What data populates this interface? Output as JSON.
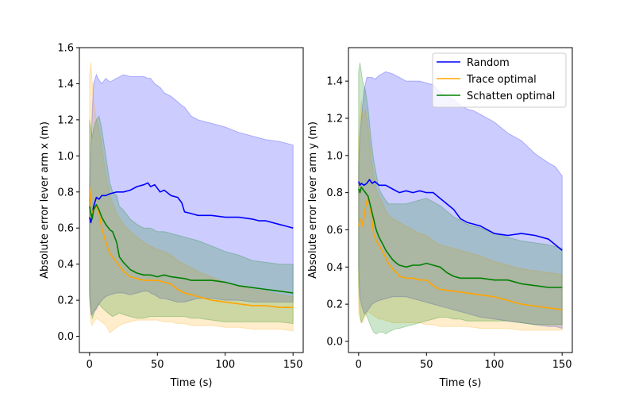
{
  "figure": {
    "background": "#ffffff"
  },
  "chart_data": [
    {
      "type": "line",
      "title": "",
      "xlabel": "Time (s)",
      "ylabel": "Absolute error lever arm x (m)",
      "xlim": [
        -7.5,
        157.5
      ],
      "ylim": [
        -0.09,
        1.6
      ],
      "xticks": [
        0,
        50,
        100,
        150
      ],
      "yticks": [
        0.0,
        0.2,
        0.4,
        0.6,
        0.8,
        1.0,
        1.2,
        1.4,
        1.6
      ],
      "ytick_labels": [
        "0.0",
        "0.2",
        "0.4",
        "0.6",
        "0.8",
        "1.0",
        "1.2",
        "1.4",
        "1.6"
      ],
      "legend": null,
      "series": [
        {
          "name": "Random",
          "color": "#0000ff",
          "x": [
            0,
            1,
            2,
            3,
            5,
            7,
            9,
            12,
            15,
            20,
            25,
            30,
            35,
            40,
            43,
            45,
            48,
            50,
            52,
            55,
            60,
            65,
            68,
            70,
            75,
            80,
            90,
            100,
            110,
            120,
            125,
            130,
            140,
            145,
            150
          ],
          "y": [
            0.66,
            0.63,
            0.67,
            0.72,
            0.77,
            0.76,
            0.78,
            0.78,
            0.79,
            0.8,
            0.8,
            0.81,
            0.83,
            0.84,
            0.85,
            0.83,
            0.84,
            0.82,
            0.8,
            0.81,
            0.78,
            0.77,
            0.74,
            0.69,
            0.68,
            0.67,
            0.67,
            0.66,
            0.66,
            0.65,
            0.64,
            0.64,
            0.62,
            0.61,
            0.6
          ],
          "band_upper": [
            0.82,
            1.05,
            1.25,
            1.4,
            1.45,
            1.42,
            1.4,
            1.43,
            1.41,
            1.43,
            1.45,
            1.44,
            1.44,
            1.44,
            1.43,
            1.43,
            1.4,
            1.39,
            1.38,
            1.35,
            1.33,
            1.3,
            1.28,
            1.27,
            1.22,
            1.2,
            1.18,
            1.16,
            1.13,
            1.11,
            1.1,
            1.09,
            1.08,
            1.07,
            1.06
          ],
          "band_lower": [
            0.22,
            0.12,
            0.12,
            0.14,
            0.15,
            0.18,
            0.2,
            0.22,
            0.23,
            0.24,
            0.24,
            0.23,
            0.24,
            0.25,
            0.25,
            0.24,
            0.23,
            0.22,
            0.21,
            0.21,
            0.2,
            0.19,
            0.19,
            0.19,
            0.2,
            0.21,
            0.21,
            0.2,
            0.2,
            0.19,
            0.19,
            0.19,
            0.19,
            0.19,
            0.19
          ]
        },
        {
          "name": "Trace optimal",
          "color": "#ffa500",
          "x": [
            0,
            1,
            2,
            3,
            5,
            7,
            9,
            12,
            15,
            20,
            25,
            30,
            35,
            40,
            45,
            50,
            55,
            60,
            65,
            70,
            75,
            80,
            90,
            100,
            110,
            120,
            130,
            140,
            150
          ],
          "y": [
            0.83,
            0.74,
            0.68,
            0.7,
            0.72,
            0.68,
            0.6,
            0.52,
            0.46,
            0.41,
            0.36,
            0.33,
            0.32,
            0.31,
            0.31,
            0.31,
            0.3,
            0.29,
            0.26,
            0.24,
            0.23,
            0.22,
            0.2,
            0.19,
            0.18,
            0.17,
            0.17,
            0.16,
            0.16
          ],
          "band_upper": [
            1.45,
            1.52,
            1.4,
            1.3,
            1.2,
            1.15,
            1.05,
            0.9,
            0.78,
            0.68,
            0.62,
            0.58,
            0.55,
            0.52,
            0.5,
            0.48,
            0.47,
            0.45,
            0.42,
            0.4,
            0.38,
            0.36,
            0.33,
            0.3,
            0.28,
            0.26,
            0.25,
            0.23,
            0.22
          ],
          "band_lower": [
            0.2,
            0.08,
            0.06,
            0.08,
            0.1,
            0.09,
            0.08,
            0.06,
            0.02,
            0.05,
            0.07,
            0.08,
            0.09,
            0.09,
            0.09,
            0.09,
            0.08,
            0.08,
            0.07,
            0.07,
            0.06,
            0.06,
            0.06,
            0.05,
            0.05,
            0.04,
            0.04,
            0.04,
            0.03
          ]
        },
        {
          "name": "Schatten optimal",
          "color": "#008000",
          "x": [
            0,
            1,
            2,
            3,
            5,
            7,
            9,
            12,
            15,
            17,
            20,
            22,
            25,
            30,
            35,
            40,
            45,
            50,
            55,
            60,
            70,
            75,
            80,
            90,
            100,
            110,
            120,
            130,
            140,
            150
          ],
          "y": [
            0.72,
            0.68,
            0.65,
            0.7,
            0.73,
            0.7,
            0.66,
            0.62,
            0.59,
            0.58,
            0.52,
            0.44,
            0.41,
            0.37,
            0.35,
            0.34,
            0.34,
            0.33,
            0.34,
            0.33,
            0.32,
            0.31,
            0.31,
            0.31,
            0.3,
            0.28,
            0.27,
            0.26,
            0.25,
            0.24
          ],
          "band_upper": [
            1.2,
            1.15,
            1.1,
            1.15,
            1.2,
            1.22,
            1.15,
            1.0,
            0.85,
            0.8,
            0.78,
            0.72,
            0.7,
            0.65,
            0.62,
            0.6,
            0.6,
            0.58,
            0.58,
            0.57,
            0.55,
            0.54,
            0.53,
            0.5,
            0.47,
            0.45,
            0.42,
            0.41,
            0.4,
            0.4
          ],
          "band_lower": [
            0.25,
            0.15,
            0.1,
            0.12,
            0.16,
            0.18,
            0.16,
            0.14,
            0.12,
            0.11,
            0.12,
            0.13,
            0.12,
            0.11,
            0.1,
            0.1,
            0.11,
            0.11,
            0.11,
            0.11,
            0.11,
            0.1,
            0.1,
            0.09,
            0.08,
            0.08,
            0.08,
            0.08,
            0.08,
            0.07
          ]
        }
      ]
    },
    {
      "type": "line",
      "title": "",
      "xlabel": "Time (s)",
      "ylabel": "Absolute error lever arm y (m)",
      "xlim": [
        -7.5,
        157.5
      ],
      "ylim": [
        -0.06,
        1.58
      ],
      "xticks": [
        0,
        50,
        100,
        150
      ],
      "yticks": [
        0.0,
        0.2,
        0.4,
        0.6,
        0.8,
        1.0,
        1.2,
        1.4
      ],
      "ytick_labels": [
        "0.0",
        "0.2",
        "0.4",
        "0.6",
        "0.8",
        "1.0",
        "1.2",
        "1.4"
      ],
      "legend": "top-right",
      "series": [
        {
          "name": "Random",
          "color": "#0000ff",
          "x": [
            0,
            1,
            2,
            4,
            6,
            8,
            10,
            12,
            15,
            20,
            25,
            30,
            35,
            40,
            45,
            50,
            55,
            60,
            65,
            70,
            75,
            80,
            85,
            90,
            100,
            110,
            120,
            130,
            140,
            145,
            150
          ],
          "y": [
            0.86,
            0.84,
            0.85,
            0.84,
            0.85,
            0.87,
            0.85,
            0.86,
            0.84,
            0.84,
            0.82,
            0.8,
            0.81,
            0.8,
            0.81,
            0.8,
            0.8,
            0.77,
            0.74,
            0.71,
            0.66,
            0.64,
            0.63,
            0.62,
            0.58,
            0.57,
            0.58,
            0.57,
            0.55,
            0.52,
            0.49
          ],
          "band_upper": [
            0.95,
            1.1,
            1.2,
            1.35,
            1.42,
            1.42,
            1.42,
            1.41,
            1.43,
            1.45,
            1.44,
            1.42,
            1.4,
            1.4,
            1.4,
            1.39,
            1.38,
            1.34,
            1.32,
            1.3,
            1.27,
            1.25,
            1.24,
            1.22,
            1.18,
            1.12,
            1.08,
            1.01,
            0.96,
            0.94,
            0.89
          ],
          "band_lower": [
            0.4,
            0.25,
            0.2,
            0.15,
            0.16,
            0.18,
            0.2,
            0.21,
            0.22,
            0.23,
            0.24,
            0.24,
            0.24,
            0.23,
            0.22,
            0.21,
            0.2,
            0.19,
            0.18,
            0.17,
            0.16,
            0.15,
            0.14,
            0.13,
            0.12,
            0.11,
            0.1,
            0.09,
            0.08,
            0.08,
            0.07
          ]
        },
        {
          "name": "Trace optimal",
          "color": "#ffa500",
          "x": [
            0,
            1,
            2,
            3,
            5,
            7,
            9,
            11,
            13,
            15,
            18,
            20,
            22,
            25,
            28,
            30,
            35,
            40,
            45,
            50,
            55,
            60,
            70,
            80,
            90,
            100,
            110,
            120,
            130,
            140,
            150
          ],
          "y": [
            0.62,
            0.65,
            0.66,
            0.62,
            0.72,
            0.78,
            0.7,
            0.58,
            0.54,
            0.52,
            0.48,
            0.45,
            0.42,
            0.39,
            0.37,
            0.35,
            0.34,
            0.34,
            0.33,
            0.33,
            0.3,
            0.28,
            0.27,
            0.26,
            0.25,
            0.24,
            0.22,
            0.2,
            0.19,
            0.18,
            0.17
          ],
          "band_upper": [
            1.1,
            1.2,
            1.3,
            1.2,
            1.25,
            1.15,
            1.0,
            0.9,
            0.82,
            0.78,
            0.74,
            0.7,
            0.68,
            0.66,
            0.65,
            0.64,
            0.62,
            0.6,
            0.58,
            0.57,
            0.54,
            0.52,
            0.5,
            0.48,
            0.46,
            0.43,
            0.41,
            0.39,
            0.38,
            0.37,
            0.36
          ],
          "band_lower": [
            0.15,
            0.12,
            0.1,
            0.1,
            0.14,
            0.16,
            0.15,
            0.14,
            0.13,
            0.12,
            0.12,
            0.11,
            0.11,
            0.1,
            0.1,
            0.1,
            0.1,
            0.1,
            0.1,
            0.09,
            0.09,
            0.08,
            0.08,
            0.08,
            0.07,
            0.07,
            0.07,
            0.06,
            0.06,
            0.06,
            0.06
          ]
        },
        {
          "name": "Schatten optimal",
          "color": "#008000",
          "x": [
            0,
            1,
            2,
            3,
            5,
            7,
            9,
            11,
            13,
            15,
            18,
            20,
            22,
            25,
            28,
            30,
            35,
            40,
            45,
            50,
            55,
            60,
            65,
            70,
            75,
            80,
            90,
            100,
            110,
            120,
            130,
            140,
            145,
            150
          ],
          "y": [
            0.82,
            0.8,
            0.83,
            0.82,
            0.8,
            0.78,
            0.72,
            0.66,
            0.6,
            0.56,
            0.52,
            0.49,
            0.47,
            0.44,
            0.42,
            0.41,
            0.4,
            0.41,
            0.41,
            0.42,
            0.41,
            0.4,
            0.37,
            0.35,
            0.34,
            0.34,
            0.34,
            0.33,
            0.33,
            0.31,
            0.3,
            0.29,
            0.29,
            0.29
          ],
          "band_upper": [
            1.45,
            1.5,
            1.45,
            1.4,
            1.35,
            1.25,
            1.1,
            0.98,
            0.9,
            0.82,
            0.78,
            0.76,
            0.74,
            0.74,
            0.74,
            0.74,
            0.74,
            0.75,
            0.76,
            0.77,
            0.75,
            0.73,
            0.7,
            0.67,
            0.65,
            0.63,
            0.61,
            0.58,
            0.56,
            0.54,
            0.53,
            0.52,
            0.51,
            0.5
          ],
          "band_lower": [
            0.3,
            0.15,
            0.1,
            0.12,
            0.15,
            0.12,
            0.08,
            0.05,
            0.04,
            0.05,
            0.05,
            0.04,
            0.05,
            0.06,
            0.07,
            0.07,
            0.08,
            0.09,
            0.1,
            0.11,
            0.12,
            0.13,
            0.13,
            0.12,
            0.12,
            0.11,
            0.11,
            0.11,
            0.11,
            0.1,
            0.09,
            0.09,
            0.09,
            0.09
          ]
        }
      ]
    }
  ]
}
